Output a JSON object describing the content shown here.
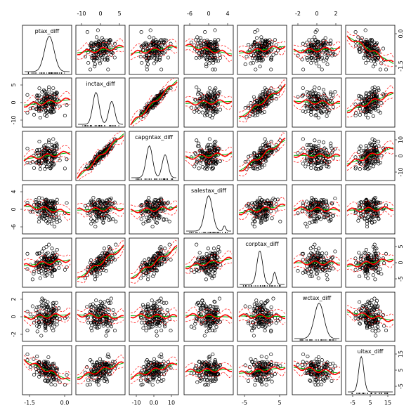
{
  "chart_data": {
    "type": "scatter",
    "variables": [
      "ptax_diff",
      "inctax_diff",
      "capgntax_diff",
      "salestax_diff",
      "corptax_diff",
      "wctax_diff",
      "uitax_diff"
    ],
    "upper_triangle": "scatter with loess smooth and band (red) and linear fit (green)",
    "diagonal": "density curve with rug",
    "lower_triangle": "scatter with smooth",
    "colors": {
      "points": "#000000",
      "smooth": "#ff0000",
      "linear": "#00b000",
      "band": "#ff0000"
    },
    "ranges": {
      "ptax_diff": [
        -1.8,
        0.8
      ],
      "inctax_diff": [
        -11,
        10
      ],
      "capgntax_diff": [
        -10,
        15
      ],
      "salestax_diff": [
        -7,
        7
      ],
      "corptax_diff": [
        -7,
        8
      ],
      "wctax_diff": [
        -3,
        3
      ],
      "uitax_diff": [
        -6,
        17
      ]
    },
    "axis_ticks": {
      "top": [
        {
          "col": 1,
          "ticks": [
            -10,
            0,
            5
          ]
        },
        {
          "col": 3,
          "ticks": [
            -6,
            0,
            4
          ]
        },
        {
          "col": 5,
          "ticks": [
            -2,
            0,
            2
          ]
        }
      ],
      "bottom": [
        {
          "col": 0,
          "ticks": [
            -1.5,
            0.0
          ]
        },
        {
          "col": 2,
          "ticks": [
            -10,
            0,
            10
          ]
        },
        {
          "col": 4,
          "ticks": [
            -5,
            5
          ]
        },
        {
          "col": 6,
          "ticks": [
            -5,
            5,
            15
          ]
        }
      ],
      "left": [
        {
          "row": 1,
          "ticks": [
            5,
            0,
            -10
          ]
        },
        {
          "row": 3,
          "ticks": [
            4,
            0,
            -6
          ]
        },
        {
          "row": 5,
          "ticks": [
            2,
            0,
            -2
          ]
        }
      ],
      "right": [
        {
          "row": 0,
          "ticks": [
            0.0,
            -1.5
          ]
        },
        {
          "row": 2,
          "ticks": [
            10,
            0,
            -10
          ]
        },
        {
          "row": 4,
          "ticks": [
            5,
            0,
            -5
          ]
        },
        {
          "row": 6,
          "ticks": [
            15,
            5,
            -5
          ]
        }
      ]
    }
  }
}
